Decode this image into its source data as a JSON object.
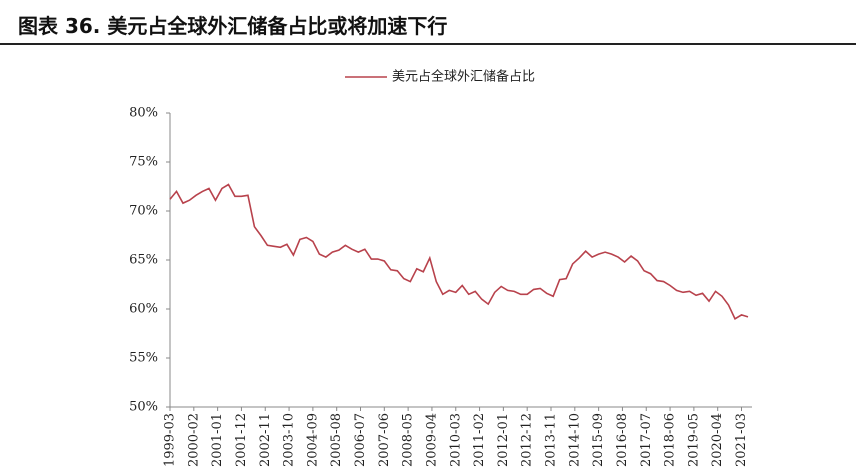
{
  "chart_data": {
    "type": "line",
    "title": "图表 36. 美元占全球外汇储备占比或将加速下行",
    "x": [
      "1999-03",
      "1999-06",
      "1999-09",
      "1999-12",
      "2000-03",
      "2000-06",
      "2000-09",
      "2000-12",
      "2001-03",
      "2001-06",
      "2001-09",
      "2001-12",
      "2002-03",
      "2002-06",
      "2002-09",
      "2002-12",
      "2003-03",
      "2003-06",
      "2003-09",
      "2003-12",
      "2004-03",
      "2004-06",
      "2004-09",
      "2004-12",
      "2005-03",
      "2005-06",
      "2005-09",
      "2005-12",
      "2006-03",
      "2006-06",
      "2006-09",
      "2006-12",
      "2007-03",
      "2007-06",
      "2007-09",
      "2007-12",
      "2008-03",
      "2008-06",
      "2008-09",
      "2008-12",
      "2009-03",
      "2009-06",
      "2009-09",
      "2009-12",
      "2010-03",
      "2010-06",
      "2010-09",
      "2010-12",
      "2011-03",
      "2011-06",
      "2011-09",
      "2011-12",
      "2012-03",
      "2012-06",
      "2012-09",
      "2012-12",
      "2013-03",
      "2013-06",
      "2013-09",
      "2013-12",
      "2014-03",
      "2014-06",
      "2014-09",
      "2014-12",
      "2015-03",
      "2015-06",
      "2015-09",
      "2015-12",
      "2016-03",
      "2016-06",
      "2016-09",
      "2016-12",
      "2017-03",
      "2017-06",
      "2017-09",
      "2017-12",
      "2018-03",
      "2018-06",
      "2018-09",
      "2018-12",
      "2019-03",
      "2019-06",
      "2019-09",
      "2019-12",
      "2020-03",
      "2020-06",
      "2020-09",
      "2020-12",
      "2021-03",
      "2021-06"
    ],
    "series": [
      {
        "name": "美元占全球外汇储备占比",
        "color": "#b8424c",
        "values": [
          71.2,
          72.0,
          70.8,
          71.1,
          71.6,
          72.0,
          72.3,
          71.1,
          72.3,
          72.7,
          71.5,
          71.5,
          71.6,
          68.4,
          67.5,
          66.5,
          66.4,
          66.3,
          66.6,
          65.5,
          67.1,
          67.3,
          66.9,
          65.6,
          65.3,
          65.8,
          66.0,
          66.5,
          66.1,
          65.8,
          66.1,
          65.1,
          65.1,
          64.9,
          64.0,
          63.9,
          63.1,
          62.8,
          64.1,
          63.8,
          65.2,
          62.8,
          61.5,
          61.9,
          61.7,
          62.4,
          61.5,
          61.8,
          61.0,
          60.5,
          61.7,
          62.3,
          61.9,
          61.8,
          61.5,
          61.5,
          62.0,
          62.1,
          61.6,
          61.3,
          63.0,
          63.1,
          64.6,
          65.2,
          65.9,
          65.3,
          65.6,
          65.8,
          65.6,
          65.3,
          64.8,
          65.4,
          64.9,
          63.9,
          63.6,
          62.9,
          62.8,
          62.4,
          61.9,
          61.7,
          61.8,
          61.4,
          61.6,
          60.8,
          61.8,
          61.3,
          60.4,
          59.0,
          59.4,
          59.2
        ]
      }
    ],
    "xlim": [
      "1999-03",
      "2021-06"
    ],
    "xticks": [
      "1999-03",
      "2000-02",
      "2001-01",
      "2001-12",
      "2002-11",
      "2003-10",
      "2004-09",
      "2005-08",
      "2006-07",
      "2007-06",
      "2008-05",
      "2009-04",
      "2010-03",
      "2011-02",
      "2012-01",
      "2012-12",
      "2013-11",
      "2014-10",
      "2015-09",
      "2016-08",
      "2017-07",
      "2018-06",
      "2019-05",
      "2020-04",
      "2021-03"
    ],
    "ylim": [
      50,
      80
    ],
    "yticks": [
      {
        "value": 50,
        "label": "50%"
      },
      {
        "value": 55,
        "label": "55%"
      },
      {
        "value": 60,
        "label": "60%"
      },
      {
        "value": 65,
        "label": "65%"
      },
      {
        "value": 70,
        "label": "70%"
      },
      {
        "value": 75,
        "label": "75%"
      },
      {
        "value": 80,
        "label": "80%"
      }
    ],
    "grid": false
  }
}
